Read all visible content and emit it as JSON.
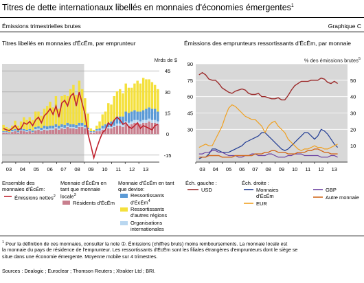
{
  "header": {
    "title": "Titres de dette internationaux libellés en monnaies d'économies émergentes",
    "title_note": "1",
    "subtitle": "Émissions trimestrielles brutes",
    "graph_id": "Graphique C"
  },
  "colors": {
    "yellow": "#F4E03C",
    "blue": "#5B9AD6",
    "lightblue": "#B9D7F0",
    "red": "#C0222E",
    "pink": "#C87F8E",
    "orange": "#F0A020",
    "navy": "#1F3A93",
    "purple": "#6A3FA0",
    "darkred": "#9C2B2B",
    "gray_bg": "#D8D8D8",
    "grid": "#9A9A9A"
  },
  "left_panel": {
    "title": "Titres libellés en monnaies d'ÉcÉm, par emprunteur",
    "unit": "Mrds de $",
    "legend": {
      "group1_title": "Ensemble des monnaies d'ÉcÉm:",
      "group1_items": [
        "Émissions nettes"
      ],
      "group1_notes": [
        "2"
      ],
      "group2_title": "Monnaie d'ÉcÉm en tant que monnaie locale",
      "group2_note": "3",
      "group2_items": [
        "Résidents d'ÉcÉm"
      ],
      "group3_title": "Monnaie d'ÉcÉm en tant que devise:",
      "group3_items": [
        "Ressortissants d'ÉcÉm",
        "Ressortissants d'autres régions",
        "Organisations internationales"
      ],
      "group3_notes": [
        "4",
        "",
        ""
      ]
    }
  },
  "right_panel": {
    "title": "Émissions des emprunteurs ressortissants d'ÉcÉm, par monnaie",
    "unit": "% des émissions brutes",
    "unit_note": "5",
    "legend": {
      "left_title": "Éch. gauche :",
      "left_items": [
        "USD"
      ],
      "right_title": "Éch. droite :",
      "right_items": [
        "Monnaies d'ÉcÉm",
        "EUR",
        "GBP",
        "Autre monnaie"
      ]
    }
  },
  "footnotes": {
    "line1": "Pour la définition de ces monnaies, consulter la note ➀.    Émissions (chiffres bruts) moins remboursements.    La monnaie locale est",
    "line2": "la monnaie du pays de résidence de l'emprunteur.    Les ressortissants d'ÉcÉm sont les filiales étrangères d'emprunteurs dont le siège se",
    "line3": "situe dans une économie émergente.    Moyenne mobile sur 4 trimestres.",
    "notes1": [
      "1",
      "2",
      "3"
    ],
    "notes2": [
      "4"
    ],
    "notes3": [
      "5"
    ],
    "sources": "Sources : Dealogic ; Euroclear ; Thomson Reuters ; Xtrakter Ltd ; BRI."
  },
  "chart_data": [
    {
      "type": "bar",
      "title": "Titres libellés en monnaies d'ÉcÉm, par emprunteur",
      "ylabel": "Mrds de $",
      "x_ticks": [
        "03",
        "04",
        "05",
        "06",
        "07",
        "08",
        "09",
        "10",
        "11",
        "12",
        "13"
      ],
      "x_start": 2002.5,
      "x_end": 2014.0,
      "ylim": [
        -20,
        50
      ],
      "yticks": [
        45,
        30,
        15,
        0,
        -15
      ],
      "shaded_range": [
        2002.5,
        2008.5
      ],
      "stack_order": [
        "Résidents d'ÉcÉm",
        "Organisations internationales",
        "Ressortissants d'ÉcÉm",
        "Ressortissants d'autres régions"
      ],
      "stacked_series": {
        "Résidents d'ÉcÉm": [
          1,
          1,
          0.5,
          1.5,
          2,
          1,
          2.5,
          2,
          1.5,
          2,
          1,
          2.5,
          3,
          2,
          3,
          2.5,
          3,
          3,
          4,
          3,
          4,
          3.5,
          5,
          4,
          4,
          3.5,
          5,
          5,
          4,
          3,
          1,
          1,
          2,
          2,
          3,
          3,
          4,
          4,
          5,
          6,
          6,
          5,
          7,
          6,
          7,
          8,
          8,
          7,
          8,
          8,
          9,
          8,
          8,
          7
        ],
        "Organisations internationales": [
          0.5,
          0.5,
          0.5,
          0.5,
          0.5,
          0.5,
          0.5,
          0.5,
          0.5,
          0.5,
          0.5,
          1,
          1,
          1,
          1,
          1,
          1,
          1,
          1,
          1,
          1,
          1,
          1,
          1,
          1,
          1,
          1,
          1,
          1,
          0.5,
          0.5,
          0.5,
          0.5,
          0.5,
          1,
          1,
          1,
          1,
          1,
          1.5,
          1.5,
          1.5,
          2,
          2,
          2,
          2,
          2,
          2,
          2,
          2,
          2,
          2,
          2,
          2
        ],
        "Ressortissants d'ÉcÉm": [
          0.5,
          0.5,
          0.5,
          1,
          1,
          1,
          1,
          1,
          1,
          1,
          1,
          1.5,
          1.5,
          1.5,
          2,
          2,
          2,
          2,
          2,
          2,
          2,
          2,
          2,
          2,
          2,
          2,
          2,
          2,
          1.5,
          1,
          0.5,
          0.5,
          1,
          1.5,
          2,
          3,
          3,
          4,
          4,
          5,
          5,
          6,
          7,
          7,
          7,
          7,
          6,
          7,
          7,
          8,
          8,
          8,
          8,
          7
        ],
        "Ressortissants d'autres régions": [
          4.5,
          3,
          2.5,
          3,
          6,
          3.5,
          5,
          8.5,
          7,
          8.5,
          7.5,
          11,
          10.5,
          8.5,
          12,
          14.5,
          17,
          13,
          20,
          12,
          20,
          21.5,
          19,
          25,
          28,
          21.5,
          30,
          24,
          19,
          10,
          2,
          1,
          2.5,
          5,
          8,
          9,
          14,
          12,
          17,
          18,
          19.5,
          16.5,
          20,
          18,
          17,
          19,
          22,
          20,
          23,
          21,
          20,
          19,
          17,
          16
        ]
      },
      "net_issuance": {
        "name": "Émissions nettes",
        "values": [
          4,
          3,
          2.5,
          4,
          6,
          3,
          4,
          8,
          7,
          9,
          6,
          10,
          12,
          8,
          13,
          15,
          18,
          14,
          20,
          12,
          22,
          24,
          20,
          27,
          29,
          20,
          30,
          22,
          14,
          0,
          -8,
          -17,
          -10,
          -4,
          1,
          3,
          8,
          6,
          10,
          12,
          10,
          7,
          8,
          5,
          4,
          6,
          8,
          4,
          6,
          5,
          4,
          3,
          6,
          7
        ]
      }
    },
    {
      "type": "line",
      "title": "Émissions des emprunteurs ressortissants d'ÉcÉm, par monnaie",
      "ylabel": "% des émissions brutes",
      "x_ticks": [
        "03",
        "04",
        "05",
        "06",
        "07",
        "08",
        "09",
        "10",
        "11",
        "12",
        "13"
      ],
      "x_start": 2002.5,
      "x_end": 2014.0,
      "left_axis": {
        "ylim": [
          0,
          90
        ],
        "yticks": [
          90,
          75,
          60,
          45,
          30
        ]
      },
      "right_axis": {
        "ylim": [
          0,
          60
        ],
        "yticks": [
          50,
          40,
          30,
          20,
          10
        ]
      },
      "series": [
        {
          "name": "USD",
          "axis": "left",
          "x": [
            2002.75,
            2003.0,
            2003.25,
            2003.5,
            2003.75,
            2004.0,
            2004.25,
            2004.5,
            2004.75,
            2005.0,
            2005.25,
            2005.5,
            2005.75,
            2006.0,
            2006.25,
            2006.5,
            2006.75,
            2007.0,
            2007.25,
            2007.5,
            2007.75,
            2008.0,
            2008.25,
            2008.5,
            2008.75,
            2009.0,
            2009.25,
            2009.5,
            2009.75,
            2010.0,
            2010.25,
            2010.5,
            2010.75,
            2011.0,
            2011.25,
            2011.5,
            2011.75,
            2012.0,
            2012.25,
            2012.5,
            2012.75,
            2013.0,
            2013.25
          ],
          "values": [
            80,
            82,
            80,
            76,
            75,
            75,
            72,
            68,
            66,
            64,
            63,
            65,
            66,
            67,
            66,
            63,
            62,
            62,
            63,
            60,
            60,
            59,
            58,
            58,
            59,
            57,
            57,
            61,
            66,
            70,
            72,
            74,
            74,
            74,
            75,
            75,
            75,
            77,
            76,
            73,
            72,
            74,
            72
          ]
        },
        {
          "name": "Monnaies d'ÉcÉm",
          "axis": "right",
          "x": [
            2002.75,
            2003.0,
            2003.25,
            2003.5,
            2003.75,
            2004.0,
            2004.25,
            2004.5,
            2004.75,
            2005.0,
            2005.25,
            2005.5,
            2005.75,
            2006.0,
            2006.25,
            2006.5,
            2006.75,
            2007.0,
            2007.25,
            2007.5,
            2007.75,
            2008.0,
            2008.25,
            2008.5,
            2008.75,
            2009.0,
            2009.25,
            2009.5,
            2009.75,
            2010.0,
            2010.25,
            2010.5,
            2010.75,
            2011.0,
            2011.25,
            2011.5,
            2011.75,
            2012.0,
            2012.25,
            2012.5,
            2012.75,
            2013.0,
            2013.25
          ],
          "values": [
            2,
            3,
            3,
            5,
            8,
            8,
            7,
            6,
            6,
            6,
            7,
            8,
            9,
            10,
            12,
            13,
            14,
            15,
            16,
            18,
            18,
            16,
            14,
            12,
            10,
            8,
            7,
            8,
            10,
            12,
            14,
            16,
            18,
            18,
            16,
            14,
            16,
            20,
            19,
            17,
            14,
            11,
            9
          ]
        },
        {
          "name": "EUR",
          "axis": "right",
          "x": [
            2002.75,
            2003.0,
            2003.25,
            2003.5,
            2003.75,
            2004.0,
            2004.25,
            2004.5,
            2004.75,
            2005.0,
            2005.25,
            2005.5,
            2005.75,
            2006.0,
            2006.25,
            2006.5,
            2006.75,
            2007.0,
            2007.25,
            2007.5,
            2007.75,
            2008.0,
            2008.25,
            2008.5,
            2008.75,
            2009.0,
            2009.25,
            2009.5,
            2009.75,
            2010.0,
            2010.25,
            2010.5,
            2010.75,
            2011.0,
            2011.25,
            2011.5,
            2011.75,
            2012.0,
            2012.25,
            2012.5,
            2012.75,
            2013.0,
            2013.25
          ],
          "values": [
            9,
            10,
            11,
            10,
            10,
            14,
            18,
            22,
            28,
            33,
            35,
            34,
            32,
            30,
            28,
            27,
            26,
            26,
            24,
            22,
            18,
            22,
            24,
            25,
            22,
            20,
            18,
            14,
            12,
            10,
            8,
            7,
            8,
            8,
            9,
            10,
            9,
            9,
            8,
            8,
            9,
            10,
            11
          ]
        },
        {
          "name": "GBP",
          "axis": "right",
          "x": [
            2002.75,
            2003.0,
            2003.25,
            2003.5,
            2003.75,
            2004.0,
            2004.25,
            2004.5,
            2004.75,
            2005.0,
            2005.25,
            2005.5,
            2005.75,
            2006.0,
            2006.25,
            2006.5,
            2006.75,
            2007.0,
            2007.25,
            2007.5,
            2007.75,
            2008.0,
            2008.25,
            2008.5,
            2008.75,
            2009.0,
            2009.25,
            2009.5,
            2009.75,
            2010.0,
            2010.25,
            2010.5,
            2010.75,
            2011.0,
            2011.25,
            2011.5,
            2011.75,
            2012.0,
            2012.25,
            2012.5,
            2012.75,
            2013.0,
            2013.25
          ],
          "values": [
            5,
            5,
            6,
            6,
            7,
            7,
            6,
            6,
            5,
            4,
            4,
            4,
            3,
            3,
            4,
            4,
            5,
            5,
            4,
            4,
            4,
            5,
            5,
            4,
            3,
            3,
            3,
            4,
            4,
            5,
            5,
            5,
            4,
            4,
            4,
            4,
            4,
            3,
            3,
            3,
            4,
            4,
            3
          ]
        },
        {
          "name": "Autre monnaie",
          "axis": "right",
          "x": [
            2002.75,
            2003.0,
            2003.25,
            2003.5,
            2003.75,
            2004.0,
            2004.25,
            2004.5,
            2004.75,
            2005.0,
            2005.25,
            2005.5,
            2005.75,
            2006.0,
            2006.25,
            2006.5,
            2006.75,
            2007.0,
            2007.25,
            2007.5,
            2007.75,
            2008.0,
            2008.25,
            2008.5,
            2008.75,
            2009.0,
            2009.25,
            2009.5,
            2009.75,
            2010.0,
            2010.25,
            2010.5,
            2010.75,
            2011.0,
            2011.25,
            2011.5,
            2011.75,
            2012.0,
            2012.25,
            2012.5,
            2012.75,
            2013.0,
            2013.25
          ],
          "values": [
            3,
            3,
            3,
            4,
            4,
            4,
            4,
            3,
            3,
            3,
            3,
            4,
            4,
            4,
            4,
            4,
            4,
            5,
            5,
            5,
            6,
            6,
            7,
            7,
            6,
            6,
            6,
            5,
            5,
            5,
            6,
            6,
            6,
            7,
            7,
            8,
            8,
            7,
            6,
            6,
            5,
            5,
            5
          ]
        }
      ]
    }
  ]
}
